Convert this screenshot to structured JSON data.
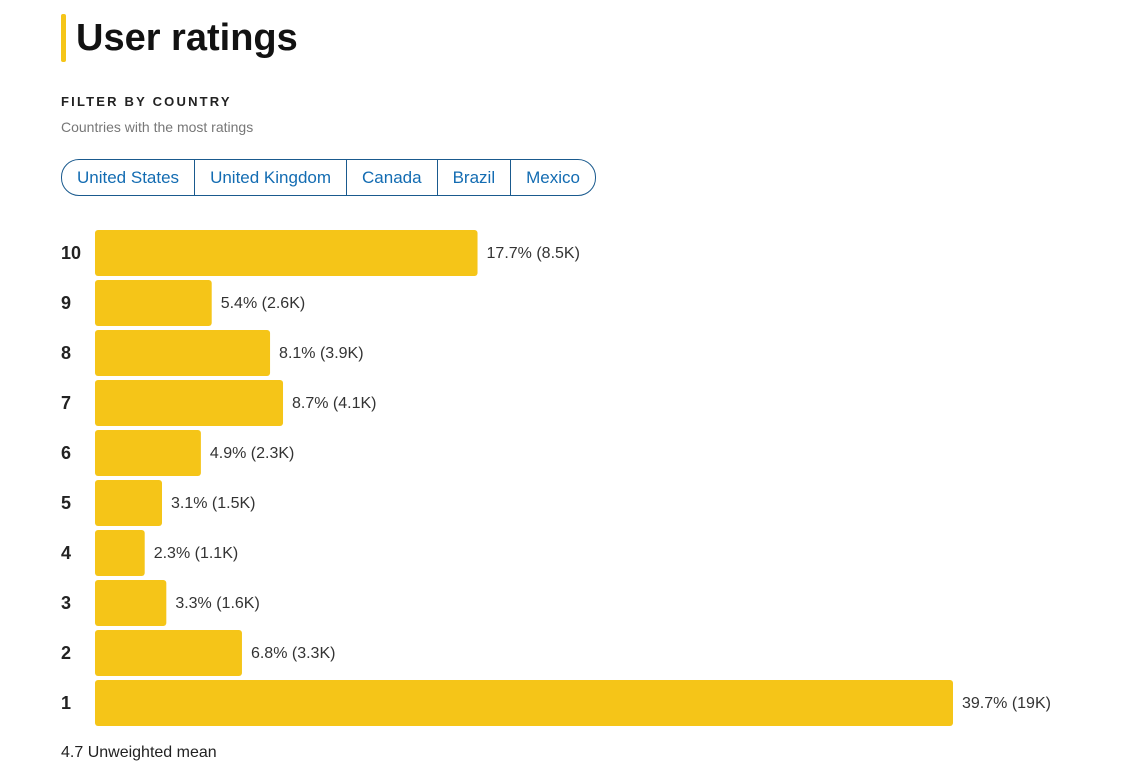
{
  "header": {
    "title": "User ratings"
  },
  "filter": {
    "heading": "FILTER BY COUNTRY",
    "subtitle": "Countries with the most ratings",
    "countries": [
      "United States",
      "United Kingdom",
      "Canada",
      "Brazil",
      "Mexico"
    ]
  },
  "chart_data": {
    "type": "bar",
    "orientation": "horizontal",
    "color": "#f5c518",
    "categories": [
      "10",
      "9",
      "8",
      "7",
      "6",
      "5",
      "4",
      "3",
      "2",
      "1"
    ],
    "values": [
      17.7,
      5.4,
      8.1,
      8.7,
      4.9,
      3.1,
      2.3,
      3.3,
      6.8,
      39.7
    ],
    "value_labels": [
      "17.7% (8.5K)",
      "5.4% (2.6K)",
      "8.1% (3.9K)",
      "8.7% (4.1K)",
      "4.9% (2.3K)",
      "3.1% (1.5K)",
      "2.3% (1.1K)",
      "3.3% (1.6K)",
      "6.8% (3.3K)",
      "39.7% (19K)"
    ]
  },
  "footer": {
    "mean": "4.7 Unweighted mean"
  }
}
